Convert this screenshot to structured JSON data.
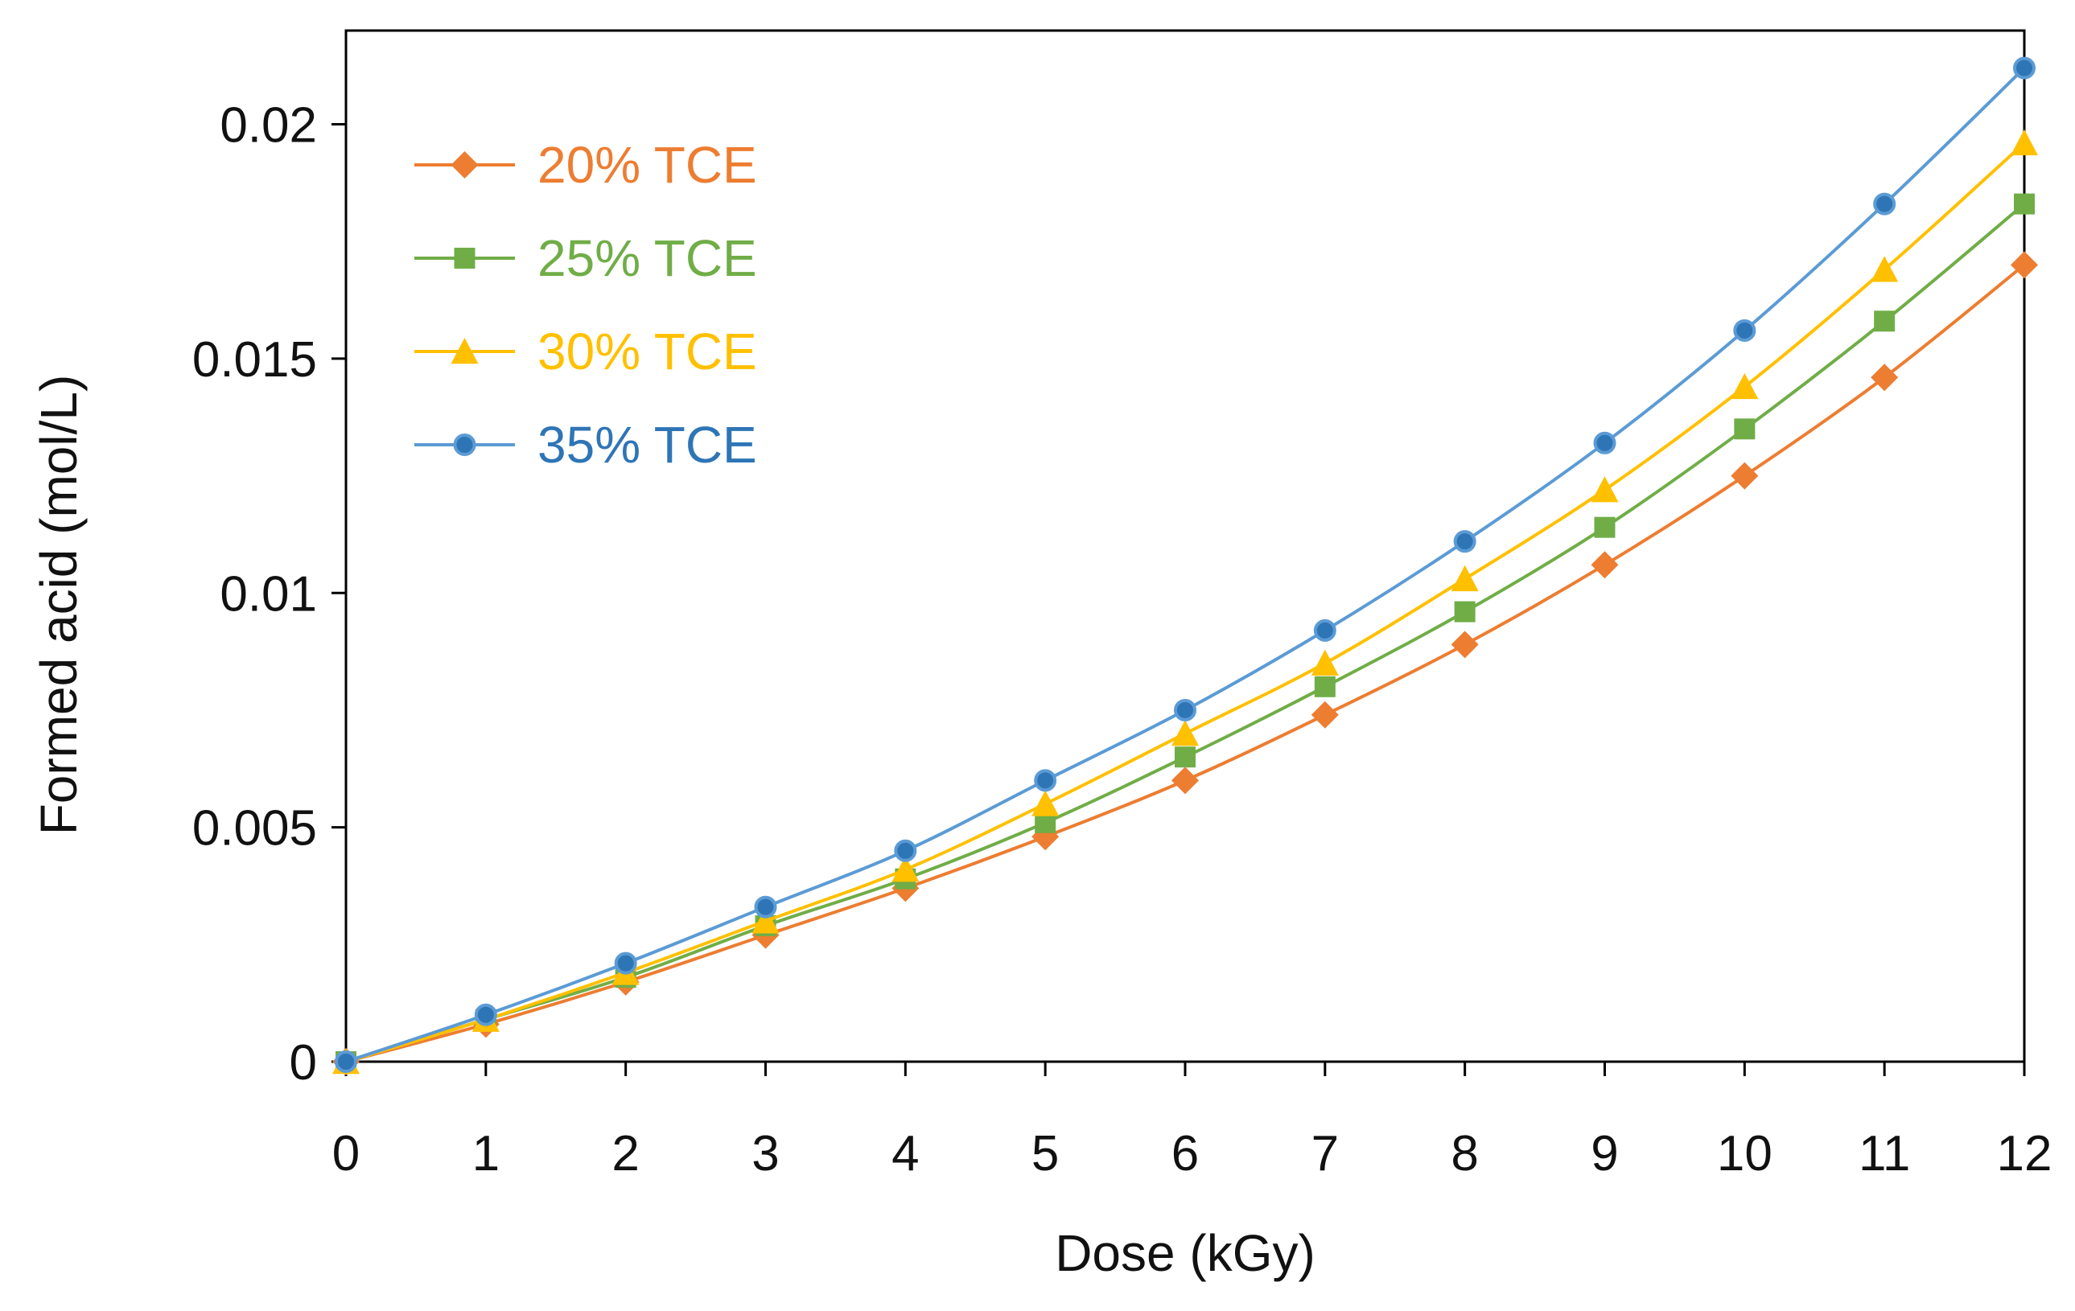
{
  "chart_data": {
    "type": "line",
    "title": "",
    "xlabel": "Dose (kGy)",
    "ylabel": "Formed acid (mol/L)",
    "xlim": [
      0,
      12
    ],
    "ylim": [
      0,
      0.022
    ],
    "x_ticks": [
      "0",
      "1",
      "2",
      "3",
      "4",
      "5",
      "6",
      "7",
      "8",
      "9",
      "10",
      "11",
      "12"
    ],
    "y_ticks": [
      {
        "value": 0,
        "label": "0"
      },
      {
        "value": 0.005,
        "label": "0.005"
      },
      {
        "value": 0.01,
        "label": "0.01"
      },
      {
        "value": 0.015,
        "label": "0.015"
      },
      {
        "value": 0.02,
        "label": "0.02"
      }
    ],
    "grid": false,
    "legend_position": "top-left",
    "x": [
      0,
      1,
      2,
      3,
      4,
      5,
      6,
      7,
      8,
      9,
      10,
      11,
      12
    ],
    "series": [
      {
        "name": "20% TCE",
        "color": "#ED7D31",
        "marker": "diamond",
        "values": [
          0,
          0.0008,
          0.0017,
          0.0027,
          0.0037,
          0.0048,
          0.006,
          0.0074,
          0.0089,
          0.0106,
          0.0125,
          0.0146,
          0.017
        ]
      },
      {
        "name": "25% TCE",
        "color": "#70AD47",
        "marker": "square",
        "values": [
          0,
          0.0009,
          0.0018,
          0.0029,
          0.0039,
          0.0051,
          0.0065,
          0.008,
          0.0096,
          0.0114,
          0.0135,
          0.0158,
          0.0183
        ]
      },
      {
        "name": "30% TCE",
        "color": "#FFC000",
        "marker": "triangle",
        "values": [
          0,
          0.0009,
          0.0019,
          0.003,
          0.0041,
          0.0055,
          0.007,
          0.0085,
          0.0103,
          0.0122,
          0.0144,
          0.0169,
          0.0196
        ]
      },
      {
        "name": "35% TCE",
        "color": "#5B9BD5",
        "marker_fill": "#2E75B6",
        "label_color": "#2E75B6",
        "marker": "circle",
        "values": [
          0,
          0.001,
          0.0021,
          0.0033,
          0.0045,
          0.006,
          0.0075,
          0.0092,
          0.0111,
          0.0132,
          0.0156,
          0.0183,
          0.0212
        ]
      }
    ]
  }
}
